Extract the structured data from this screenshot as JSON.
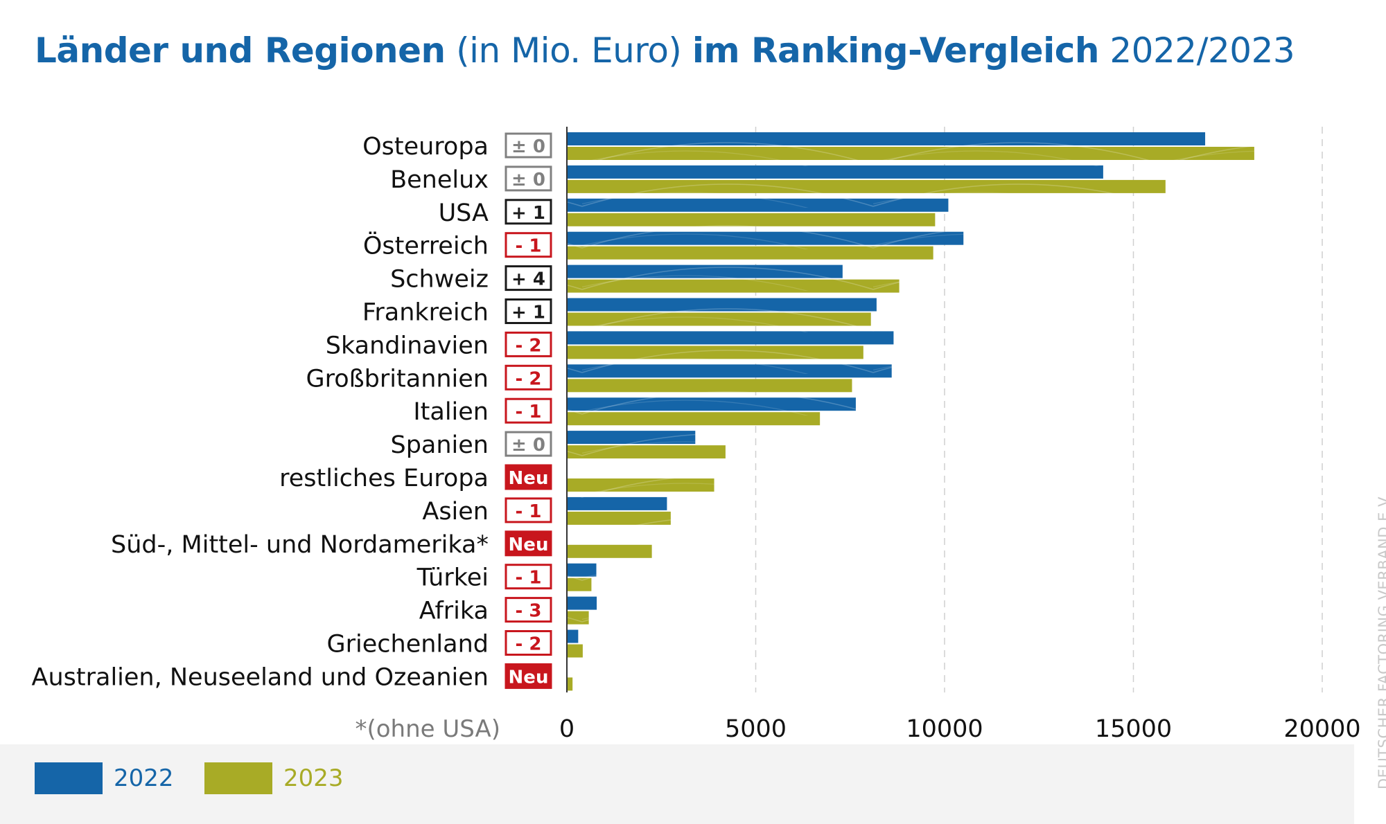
{
  "title": {
    "part1": "Länder und Regionen",
    "part2": "(in Mio. Euro)",
    "part3": "im Ranking-Vergleich",
    "part4": "2022/2023"
  },
  "footnote": "*(ohne USA)",
  "watermark": "DEUTSCHER FACTORING VERBAND E.V.",
  "colors": {
    "series_2022": "#1565a8",
    "series_2023": "#a8ab26",
    "badge_red": "#c8161d",
    "badge_gray": "#808080",
    "badge_black": "#1a1a1a",
    "title": "#1565a8"
  },
  "chart_data": {
    "type": "bar",
    "orientation": "horizontal",
    "categories": [
      "Osteuropa",
      "Benelux",
      "USA",
      "Österreich",
      "Schweiz",
      "Frankreich",
      "Skandinavien",
      "Großbritannien",
      "Italien",
      "Spanien",
      "restliches Europa",
      "Asien",
      "Süd-, Mittel- und Nordamerika*",
      "Türkei",
      "Afrika",
      "Griechenland",
      "Australien, Neuseeland und Ozeanien"
    ],
    "series": [
      {
        "name": "2022",
        "color": "#1565a8",
        "values": [
          16900,
          14200,
          10100,
          10500,
          7300,
          8200,
          8650,
          8600,
          7650,
          3400,
          null,
          2650,
          null,
          780,
          790,
          300,
          null
        ]
      },
      {
        "name": "2023",
        "color": "#a8ab26",
        "values": [
          18200,
          15850,
          9750,
          9700,
          8800,
          8050,
          7850,
          7550,
          6700,
          4200,
          3900,
          2750,
          2250,
          650,
          580,
          420,
          150
        ]
      }
    ],
    "ranking_change": [
      {
        "label": "± 0",
        "kind": "gray"
      },
      {
        "label": "± 0",
        "kind": "gray"
      },
      {
        "label": "+ 1",
        "kind": "black"
      },
      {
        "label": "- 1",
        "kind": "red"
      },
      {
        "label": "+ 4",
        "kind": "black"
      },
      {
        "label": "+ 1",
        "kind": "black"
      },
      {
        "label": "- 2",
        "kind": "red"
      },
      {
        "label": "- 2",
        "kind": "red"
      },
      {
        "label": "- 1",
        "kind": "red"
      },
      {
        "label": "± 0",
        "kind": "gray"
      },
      {
        "label": "Neu",
        "kind": "new"
      },
      {
        "label": "- 1",
        "kind": "red"
      },
      {
        "label": "Neu",
        "kind": "new"
      },
      {
        "label": "- 1",
        "kind": "red"
      },
      {
        "label": "- 3",
        "kind": "red"
      },
      {
        "label": "- 2",
        "kind": "red"
      },
      {
        "label": "Neu",
        "kind": "new"
      }
    ],
    "xlim": [
      0,
      20000
    ],
    "xticks": [
      0,
      5000,
      10000,
      15000,
      20000
    ],
    "xticklabels": [
      "0",
      "5000",
      "10000",
      "15000",
      "20000"
    ],
    "grid": "vertical dashed",
    "legend": {
      "placement": "bottom-left",
      "entries": [
        "2022",
        "2023"
      ]
    },
    "xlabel": "",
    "ylabel": ""
  }
}
